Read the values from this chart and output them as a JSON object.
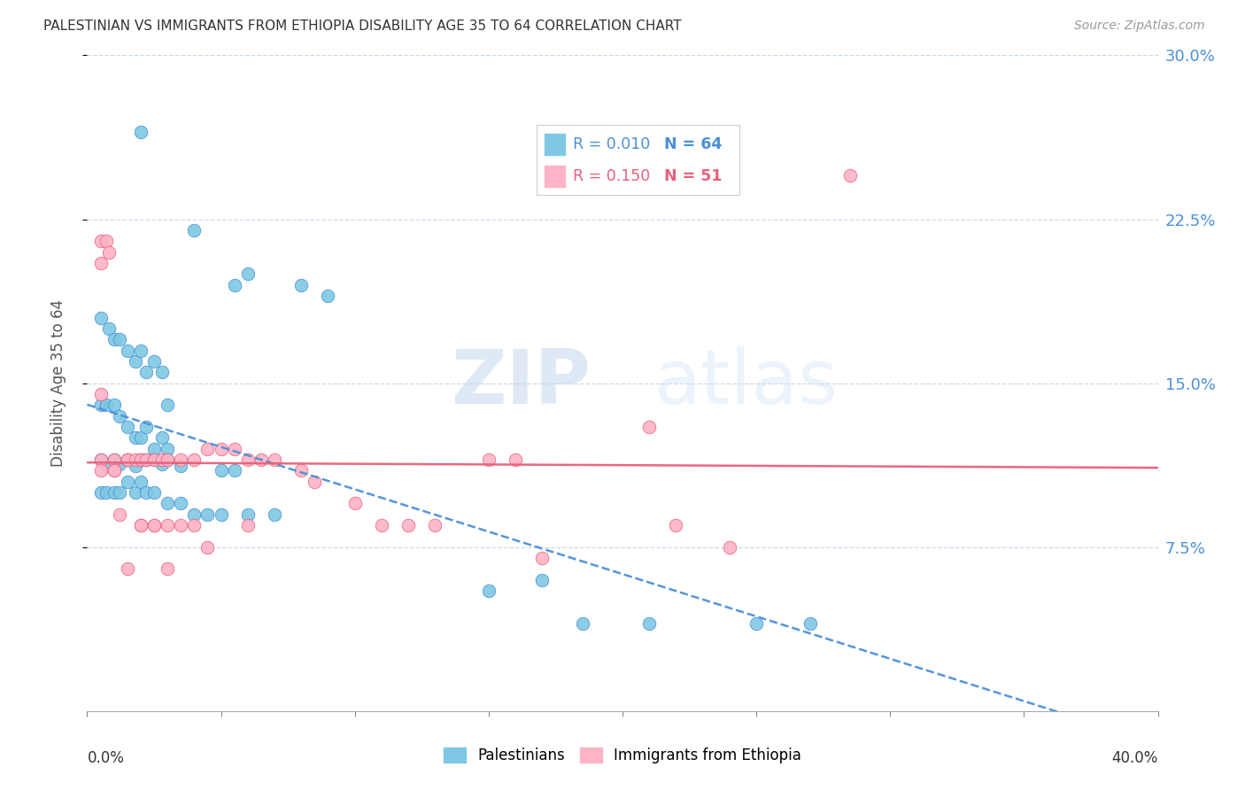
{
  "title": "PALESTINIAN VS IMMIGRANTS FROM ETHIOPIA DISABILITY AGE 35 TO 64 CORRELATION CHART",
  "source": "Source: ZipAtlas.com",
  "ylabel": "Disability Age 35 to 64",
  "ytick_labels": [
    "7.5%",
    "15.0%",
    "22.5%",
    "30.0%"
  ],
  "ytick_values": [
    0.075,
    0.15,
    0.225,
    0.3
  ],
  "xmin": 0.0,
  "xmax": 0.4,
  "ymin": 0.0,
  "ymax": 0.3,
  "palestinians_R": 0.01,
  "palestinians_N": 64,
  "ethiopia_R": 0.15,
  "ethiopia_N": 51,
  "blue_color": "#7ec8e3",
  "pink_color": "#ffb3c6",
  "blue_line_color": "#4a90d9",
  "pink_line_color": "#e8607a",
  "legend_label_blue": "Palestinians",
  "legend_label_pink": "Immigrants from Ethiopia",
  "watermark_zip": "ZIP",
  "watermark_atlas": "atlas",
  "palestinians_x": [
    0.02,
    0.04,
    0.055,
    0.06,
    0.08,
    0.09,
    0.005,
    0.008,
    0.01,
    0.012,
    0.015,
    0.018,
    0.02,
    0.022,
    0.025,
    0.028,
    0.005,
    0.007,
    0.01,
    0.012,
    0.015,
    0.018,
    0.02,
    0.022,
    0.025,
    0.028,
    0.03,
    0.005,
    0.007,
    0.01,
    0.012,
    0.015,
    0.018,
    0.02,
    0.022,
    0.025,
    0.028,
    0.03,
    0.035,
    0.005,
    0.007,
    0.01,
    0.012,
    0.015,
    0.018,
    0.02,
    0.022,
    0.025,
    0.03,
    0.035,
    0.04,
    0.045,
    0.05,
    0.06,
    0.07,
    0.03,
    0.05,
    0.055,
    0.15,
    0.17,
    0.185,
    0.21,
    0.25,
    0.27
  ],
  "palestinians_y": [
    0.265,
    0.22,
    0.195,
    0.2,
    0.195,
    0.19,
    0.18,
    0.175,
    0.17,
    0.17,
    0.165,
    0.16,
    0.165,
    0.155,
    0.16,
    0.155,
    0.14,
    0.14,
    0.14,
    0.135,
    0.13,
    0.125,
    0.125,
    0.13,
    0.12,
    0.125,
    0.12,
    0.115,
    0.112,
    0.115,
    0.113,
    0.115,
    0.112,
    0.115,
    0.115,
    0.115,
    0.113,
    0.115,
    0.112,
    0.1,
    0.1,
    0.1,
    0.1,
    0.105,
    0.1,
    0.105,
    0.1,
    0.1,
    0.095,
    0.095,
    0.09,
    0.09,
    0.09,
    0.09,
    0.09,
    0.14,
    0.11,
    0.11,
    0.055,
    0.06,
    0.04,
    0.04,
    0.04,
    0.04
  ],
  "ethiopia_x": [
    0.005,
    0.005,
    0.007,
    0.008,
    0.01,
    0.01,
    0.012,
    0.015,
    0.015,
    0.018,
    0.02,
    0.02,
    0.022,
    0.025,
    0.025,
    0.028,
    0.03,
    0.03,
    0.035,
    0.035,
    0.04,
    0.04,
    0.045,
    0.05,
    0.055,
    0.06,
    0.065,
    0.07,
    0.08,
    0.085,
    0.1,
    0.11,
    0.12,
    0.13,
    0.15,
    0.16,
    0.17,
    0.21,
    0.22,
    0.24,
    0.285,
    0.005,
    0.005,
    0.005,
    0.01,
    0.015,
    0.02,
    0.025,
    0.03,
    0.045,
    0.06
  ],
  "ethiopia_y": [
    0.215,
    0.205,
    0.215,
    0.21,
    0.115,
    0.11,
    0.09,
    0.115,
    0.115,
    0.115,
    0.115,
    0.085,
    0.115,
    0.115,
    0.085,
    0.115,
    0.115,
    0.085,
    0.115,
    0.085,
    0.115,
    0.085,
    0.12,
    0.12,
    0.12,
    0.115,
    0.115,
    0.115,
    0.11,
    0.105,
    0.095,
    0.085,
    0.085,
    0.085,
    0.115,
    0.115,
    0.07,
    0.13,
    0.085,
    0.075,
    0.245,
    0.145,
    0.115,
    0.11,
    0.11,
    0.065,
    0.085,
    0.085,
    0.065,
    0.075,
    0.085
  ]
}
